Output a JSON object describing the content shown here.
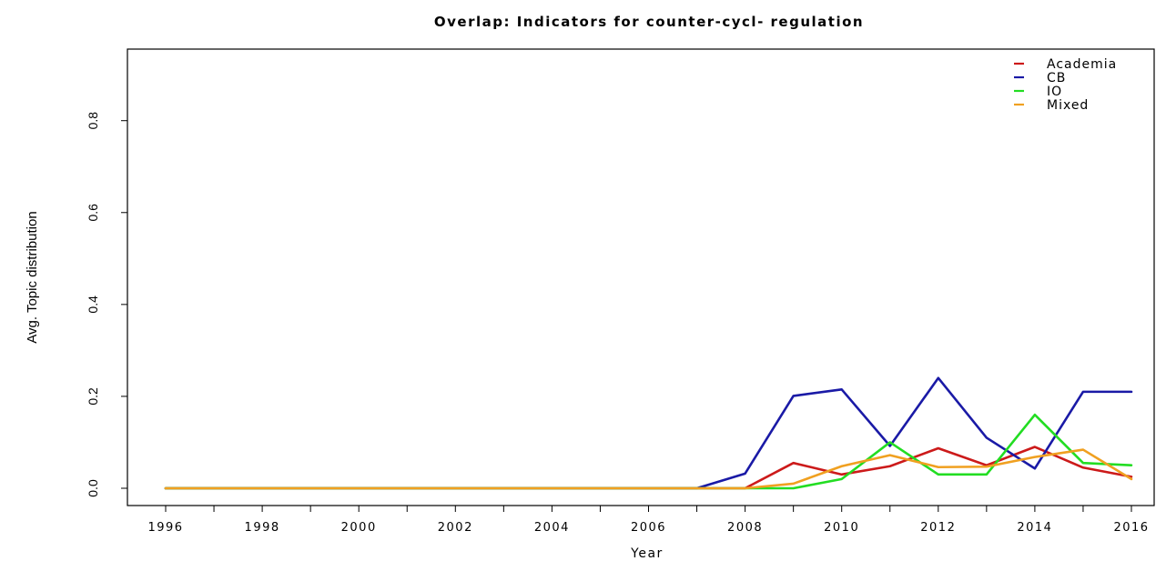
{
  "chart_data": {
    "type": "line",
    "title": "Overlap: Indicators for counter-cycl- regulation",
    "xlabel": "Year",
    "ylabel": "Avg. Topic distribution",
    "x": [
      1996,
      1997,
      1998,
      1999,
      2000,
      2001,
      2002,
      2003,
      2004,
      2005,
      2006,
      2007,
      2008,
      2009,
      2010,
      2011,
      2012,
      2013,
      2014,
      2015,
      2016
    ],
    "xlim": [
      1996,
      2016
    ],
    "ylim": [
      0,
      0.93
    ],
    "x_ticks": [
      1996,
      1997,
      1998,
      1999,
      2000,
      2001,
      2002,
      2003,
      2004,
      2005,
      2006,
      2007,
      2008,
      2009,
      2010,
      2011,
      2012,
      2013,
      2014,
      2015,
      2016
    ],
    "x_tick_labels": [
      "1996",
      "1998",
      "2000",
      "2002",
      "2004",
      "2006",
      "2008",
      "2010",
      "2012",
      "2014",
      "2016"
    ],
    "y_ticks": [
      0.0,
      0.2,
      0.4,
      0.6,
      0.8
    ],
    "y_tick_labels": [
      "0.0",
      "0.2",
      "0.4",
      "0.6",
      "0.8"
    ],
    "grid": false,
    "legend_position": "top-right",
    "series": [
      {
        "name": "Academia",
        "color": "#cc1a1a",
        "values": [
          0,
          0,
          0,
          0,
          0,
          0,
          0,
          0,
          0,
          0,
          0,
          0,
          0,
          0.055,
          0.03,
          0.048,
          0.087,
          0.05,
          0.09,
          0.045,
          0.025
        ]
      },
      {
        "name": "CB",
        "color": "#1a1aa6",
        "values": [
          0,
          0,
          0,
          0,
          0,
          0,
          0,
          0,
          0,
          0,
          0,
          0,
          0.032,
          0.201,
          0.215,
          0.092,
          0.24,
          0.11,
          0.043,
          0.21,
          0.21
        ]
      },
      {
        "name": "IO",
        "color": "#22dd22",
        "values": [
          0,
          0,
          0,
          0,
          0,
          0,
          0,
          0,
          0,
          0,
          0,
          0,
          0,
          0,
          0.02,
          0.1,
          0.03,
          0.03,
          0.16,
          0.055,
          0.05
        ]
      },
      {
        "name": "Mixed",
        "color": "#f0a020",
        "values": [
          0,
          0,
          0,
          0,
          0,
          0,
          0,
          0,
          0,
          0,
          0,
          0,
          0,
          0.01,
          0.048,
          0.072,
          0.046,
          0.047,
          0.068,
          0.084,
          0.02
        ]
      }
    ]
  }
}
